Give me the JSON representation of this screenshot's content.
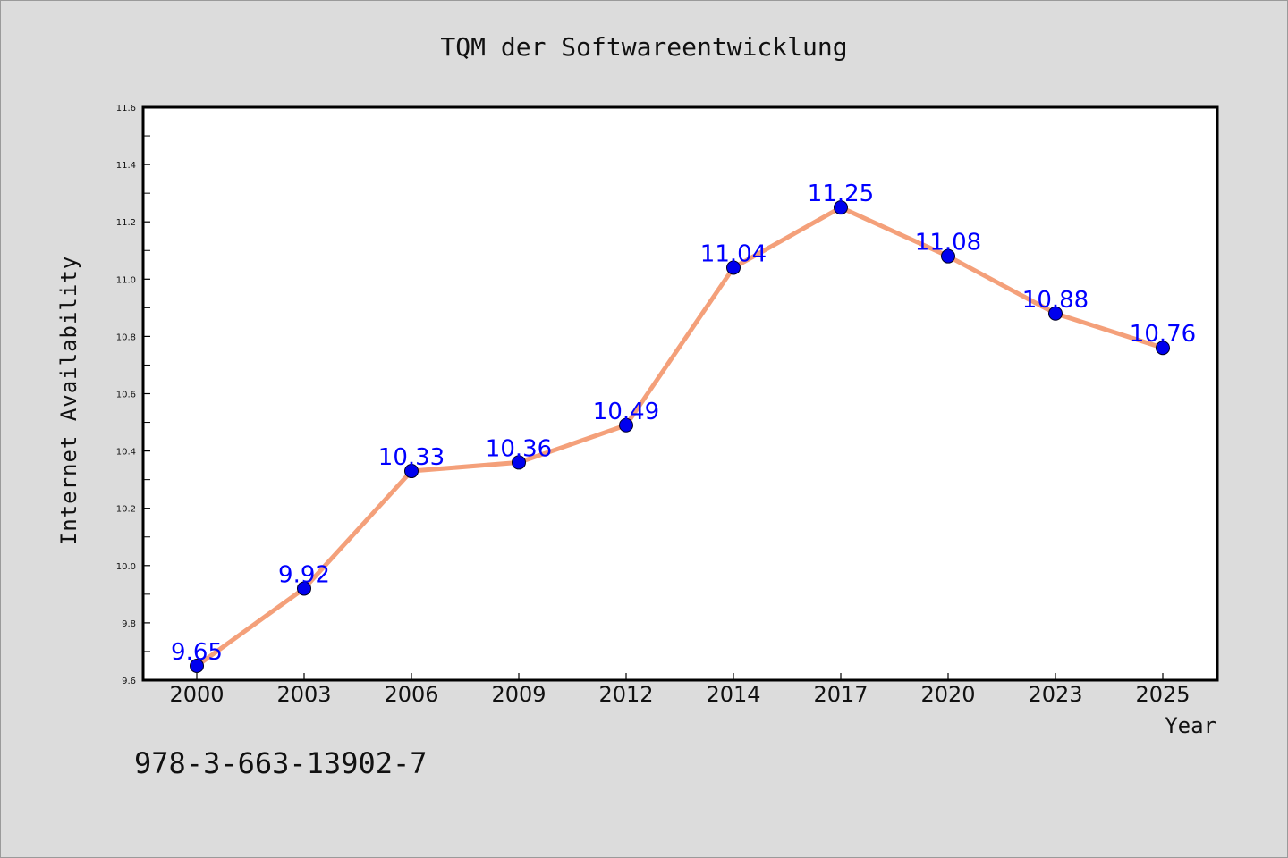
{
  "chart_data": {
    "type": "line",
    "title": "TQM der Softwareentwicklung",
    "xlabel": "Year",
    "ylabel": "Internet Availability",
    "categories": [
      "2000",
      "2003",
      "2006",
      "2009",
      "2012",
      "2014",
      "2017",
      "2020",
      "2023",
      "2025"
    ],
    "series": [
      {
        "values": [
          9.65,
          9.92,
          10.33,
          10.36,
          10.49,
          11.04,
          11.25,
          11.08,
          10.88,
          10.76
        ],
        "value_labels": [
          "9.65",
          "9.92",
          "10.33",
          "10.36",
          "10.49",
          "11.04",
          "11.25",
          "11.08",
          "10.88",
          "10.76"
        ],
        "line_color": "#f4a07a",
        "marker_color": "#0000ee",
        "label_color": "#0000ff"
      }
    ],
    "ylim": [
      9.6,
      11.6
    ],
    "yticks": [
      "9.6",
      "9.8",
      "10.0",
      "10.2",
      "10.4",
      "10.6",
      "10.8",
      "11.0",
      "11.2",
      "11.4",
      "11.6"
    ],
    "grid": false,
    "legend": "none"
  },
  "note": "978-3-663-13902-7",
  "colors": {
    "background": "#dcdcdc",
    "plot_background": "#ffffff",
    "axis": "#000000"
  }
}
